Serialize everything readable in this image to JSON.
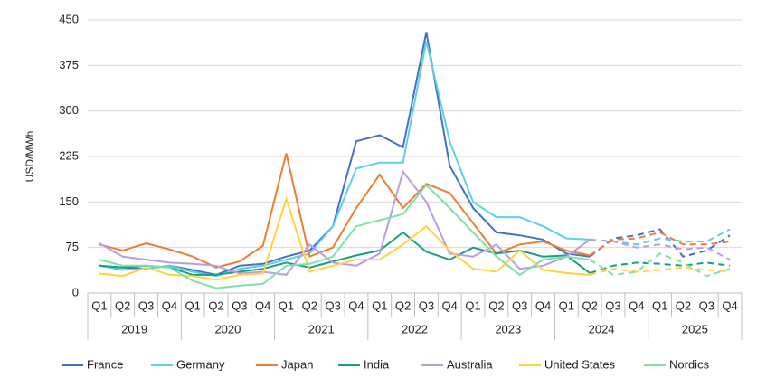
{
  "chart_data": {
    "type": "line",
    "y_label": "USD/MWh",
    "categories": [
      "Q1",
      "Q2",
      "Q3",
      "Q4",
      "Q1",
      "Q2",
      "Q3",
      "Q4",
      "Q1",
      "Q2",
      "Q3",
      "Q4",
      "Q1",
      "Q2",
      "Q3",
      "Q4",
      "Q1",
      "Q2",
      "Q3",
      "Q4",
      "Q1",
      "Q2",
      "Q3",
      "Q4",
      "Q1",
      "Q2",
      "Q3",
      "Q4"
    ],
    "groups": [
      "2019",
      "2020",
      "2021",
      "2022",
      "2023",
      "2024",
      "2025"
    ],
    "ylim": [
      0,
      450
    ],
    "yticks": [
      0,
      75,
      150,
      225,
      300,
      375,
      450
    ],
    "grid": true,
    "dashed_from_category": 21,
    "legend": "bottom",
    "series": [
      {
        "name": "France",
        "color": "#4472c4",
        "values": [
          45,
          42,
          40,
          45,
          38,
          30,
          45,
          48,
          60,
          70,
          110,
          250,
          260,
          240,
          430,
          210,
          140,
          100,
          95,
          88,
          65,
          60,
          90,
          95,
          105,
          60,
          70,
          95
        ]
      },
      {
        "name": "Germany",
        "color": "#5bd1e8",
        "values": [
          45,
          38,
          40,
          45,
          35,
          28,
          40,
          45,
          55,
          65,
          110,
          205,
          215,
          215,
          415,
          250,
          150,
          125,
          125,
          110,
          90,
          88,
          85,
          80,
          90,
          85,
          85,
          105
        ]
      },
      {
        "name": "Japan",
        "color": "#ed7d31",
        "values": [
          80,
          70,
          82,
          72,
          60,
          42,
          52,
          78,
          230,
          60,
          75,
          140,
          195,
          140,
          180,
          165,
          115,
          65,
          80,
          85,
          70,
          62,
          88,
          90,
          100,
          80,
          80,
          85
        ]
      },
      {
        "name": "India",
        "color": "#1a9e86",
        "values": [
          45,
          42,
          45,
          42,
          30,
          30,
          35,
          40,
          50,
          42,
          52,
          62,
          70,
          100,
          68,
          55,
          75,
          65,
          70,
          60,
          62,
          33,
          45,
          50,
          48,
          45,
          50,
          45
        ]
      },
      {
        "name": "Australia",
        "color": "#b99ee6",
        "values": [
          82,
          60,
          55,
          50,
          48,
          45,
          32,
          35,
          30,
          80,
          50,
          45,
          65,
          200,
          150,
          65,
          60,
          80,
          40,
          45,
          60,
          88,
          85,
          75,
          80,
          72,
          75,
          55
        ]
      },
      {
        "name": "United States",
        "color": "#ffd23f",
        "values": [
          32,
          28,
          42,
          30,
          28,
          22,
          30,
          32,
          155,
          35,
          45,
          55,
          55,
          80,
          110,
          70,
          40,
          35,
          70,
          38,
          33,
          30,
          40,
          35,
          38,
          42,
          38,
          35
        ]
      },
      {
        "name": "Nordics",
        "color": "#7fe0a8",
        "values": [
          55,
          45,
          45,
          42,
          20,
          8,
          12,
          15,
          45,
          48,
          60,
          110,
          120,
          130,
          178,
          140,
          100,
          60,
          30,
          55,
          60,
          55,
          30,
          35,
          65,
          50,
          28,
          40
        ]
      }
    ]
  }
}
